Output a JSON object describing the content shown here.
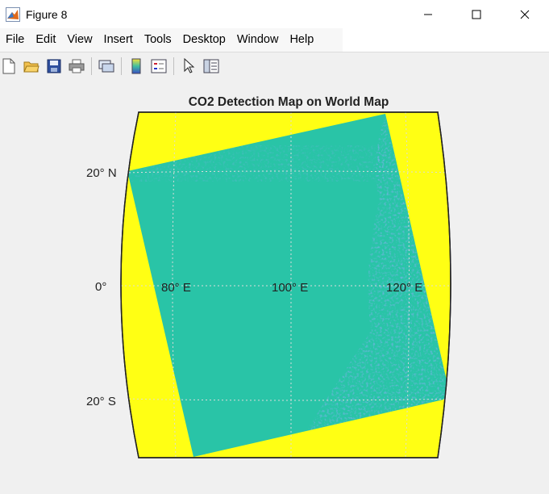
{
  "window": {
    "title": "Figure 8"
  },
  "menu": [
    "File",
    "Edit",
    "View",
    "Insert",
    "Tools",
    "Desktop",
    "Window",
    "Help"
  ],
  "toolbar": {
    "buttons": [
      {
        "name": "new-figure-icon"
      },
      {
        "name": "open-file-icon"
      },
      {
        "name": "save-figure-icon"
      },
      {
        "name": "print-figure-icon"
      },
      {
        "name": "link-plot-icon"
      },
      {
        "name": "insert-colorbar-icon"
      },
      {
        "name": "insert-legend-icon"
      },
      {
        "name": "edit-plot-arrow-icon"
      },
      {
        "name": "property-inspector-icon"
      }
    ]
  },
  "chart_data": {
    "type": "heatmap",
    "title": "CO2 Detection Map on World Map",
    "lat_labels": [
      "20° N",
      "0°",
      "20° S"
    ],
    "lon_labels": [
      "80° E",
      "100° E",
      "120° E"
    ],
    "colors": {
      "frame_background": "#ffff14",
      "data_base": "#29c4a7",
      "data_anomaly": "#3b6fe0",
      "grid": "#dcdcdc"
    },
    "grid": true
  }
}
